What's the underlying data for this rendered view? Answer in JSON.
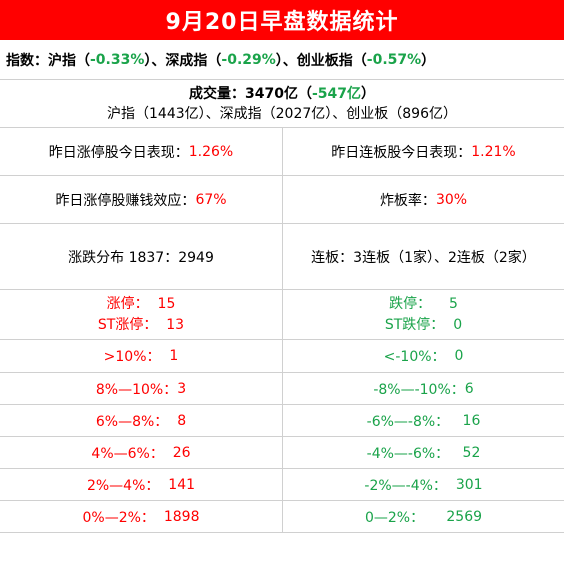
{
  "title": "9月20日早盘数据统计",
  "indices": {
    "prefix": "指数：沪指（",
    "sh": "-0.33%",
    "mid1": "）、深成指（",
    "sz": "-0.29%",
    "mid2": "）、创业板指（",
    "cy": "-0.57%",
    "suffix": "）"
  },
  "volume": {
    "label": "成交量：3470亿（",
    "change": "-547亿",
    "suffix": "）",
    "breakdown": "沪指（1443亿）、深成指（2027亿）、创业板（896亿）"
  },
  "stats": {
    "zt_perf_label": "昨日涨停股今日表现：",
    "zt_perf_value": "1.26%",
    "lb_perf_label": "昨日连板股今日表现：",
    "lb_perf_value": "1.21%",
    "zt_money_label": "昨日涨停股赚钱效应：",
    "zt_money_value": "67%",
    "zb_label": "炸板率：",
    "zb_value": "30%",
    "dist": "涨跌分布 1837：2949",
    "lianban": "连板：3连板（1家）、2连板（2家）"
  },
  "limits": {
    "zt_label": "涨停：",
    "zt_value": "15",
    "st_zt_label": "ST涨停：",
    "st_zt_value": "13",
    "dt_label": "跌停：",
    "dt_value": "5",
    "st_dt_label": "ST跌停：",
    "st_dt_value": "0"
  },
  "ranges": [
    {
      "up_label": ">10%：",
      "up_value": "1",
      "down_label": "<-10%：",
      "down_value": "0"
    },
    {
      "up_label": "8%—10%：",
      "up_value": "3",
      "down_label": "-8%—-10%：",
      "down_value": "6"
    },
    {
      "up_label": "6%—8%：",
      "up_value": "8",
      "down_label": "-6%—-8%：",
      "down_value": "16"
    },
    {
      "up_label": "4%—6%：",
      "up_value": "26",
      "down_label": "-4%—-6%：",
      "down_value": "52"
    },
    {
      "up_label": "2%—4%：",
      "up_value": "141",
      "down_label": "-2%—-4%：",
      "down_value": "301"
    },
    {
      "up_label": "0%—2%：",
      "up_value": "1898",
      "down_label": "0—2%：",
      "down_value": "2569"
    }
  ],
  "colors": {
    "header_bg": "#ff0000",
    "up": "#ff0000",
    "down": "#1aa34a"
  }
}
